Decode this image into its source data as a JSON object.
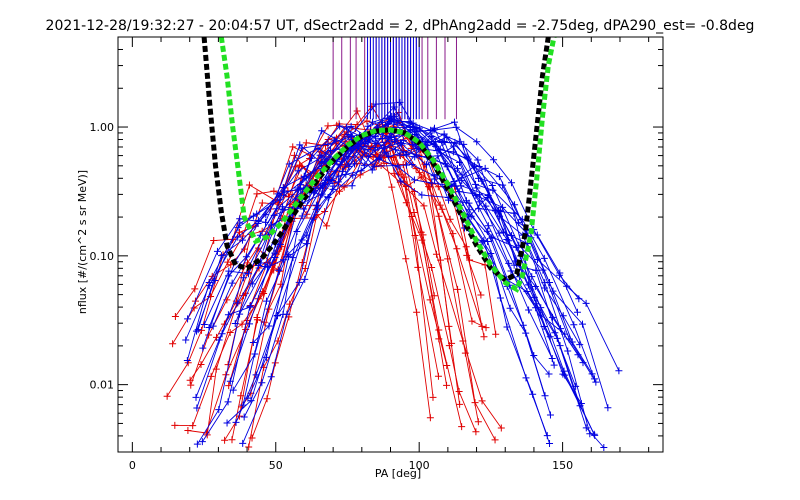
{
  "chart_data": {
    "type": "scatter",
    "title": "2021-12-28/19:32:27 - 20:04:57 UT, dSectr2add = 2, dPhAng2add = -2.75deg, dPA290_est=  -0.8deg",
    "xlabel": "PA [deg]",
    "ylabel": "nflux [#/(cm^2 s sr MeV)]",
    "xlim": [
      -5,
      185
    ],
    "ylim": [
      0.003,
      5
    ],
    "y_scale": "log",
    "x_ticks": [
      0,
      50,
      100,
      150
    ],
    "x_tick_labels": [
      "0",
      "50",
      "100",
      "150"
    ],
    "y_ticks": [
      0.01,
      0.1,
      1.0
    ],
    "y_tick_labels": [
      "0.01",
      "0.10",
      "1.00"
    ],
    "grid": false,
    "colors": {
      "red": "#e00000",
      "blue": "#0000e0",
      "black_fit": "#000000",
      "green_fit": "#22e022",
      "purple": "#8a1a8a"
    },
    "series": [
      {
        "color": "#000000",
        "style": "dashed",
        "x": [
          25,
          27,
          29,
          31,
          33,
          36,
          40,
          45,
          50,
          55,
          60,
          65,
          70,
          75,
          80,
          85,
          90,
          95,
          100,
          105,
          110,
          115,
          120,
          125,
          130,
          134,
          137,
          140,
          143,
          145
        ],
        "y": [
          5,
          1.5,
          0.5,
          0.22,
          0.12,
          0.085,
          0.08,
          0.095,
          0.13,
          0.19,
          0.28,
          0.4,
          0.55,
          0.7,
          0.85,
          0.93,
          0.95,
          0.9,
          0.75,
          0.52,
          0.33,
          0.2,
          0.12,
          0.08,
          0.065,
          0.072,
          0.15,
          0.6,
          2.5,
          5
        ]
      },
      {
        "color": "#22e022",
        "style": "dashed",
        "x": [
          31,
          33,
          35,
          37,
          39,
          43,
          47,
          52,
          58,
          64,
          70,
          75,
          80,
          85,
          90,
          95,
          100,
          105,
          110,
          115,
          120,
          125,
          130,
          134,
          136,
          139,
          141,
          143,
          145,
          147
        ],
        "y": [
          5,
          2.5,
          1.0,
          0.45,
          0.2,
          0.13,
          0.14,
          0.18,
          0.27,
          0.4,
          0.56,
          0.72,
          0.86,
          0.94,
          0.95,
          0.9,
          0.76,
          0.55,
          0.36,
          0.22,
          0.13,
          0.085,
          0.062,
          0.055,
          0.07,
          0.15,
          0.4,
          1.2,
          3.0,
          5
        ]
      },
      {
        "color": "#e00000",
        "style": "lines+markers",
        "name_hint": "red traces",
        "n_traces": 18,
        "peak_x": 88,
        "left_foot": [
          12,
          0.004
        ],
        "right_foot": [
          128,
          0.004
        ]
      },
      {
        "color": "#0000e0",
        "style": "lines+markers",
        "name_hint": "blue traces",
        "n_traces": 26,
        "peak_x": 90,
        "left_foot": [
          16,
          0.004
        ],
        "right_foot": [
          162,
          0.004
        ]
      }
    ],
    "vertical_lines": [
      {
        "color": "#8a1a8a",
        "x": [
          70,
          73,
          76,
          78,
          81,
          83,
          85,
          87,
          88,
          89,
          90,
          91,
          92,
          93,
          94,
          95,
          96,
          97,
          99,
          101,
          103,
          106,
          109,
          113
        ],
        "y_from": 1.15,
        "y_to": 5
      },
      {
        "color": "#0000e0",
        "x": [
          82,
          83,
          84,
          85,
          86,
          87,
          88,
          89,
          90,
          91,
          92,
          93,
          94,
          95,
          96,
          97,
          98,
          99,
          100
        ],
        "y_from": 1.15,
        "y_to": 5
      }
    ]
  }
}
